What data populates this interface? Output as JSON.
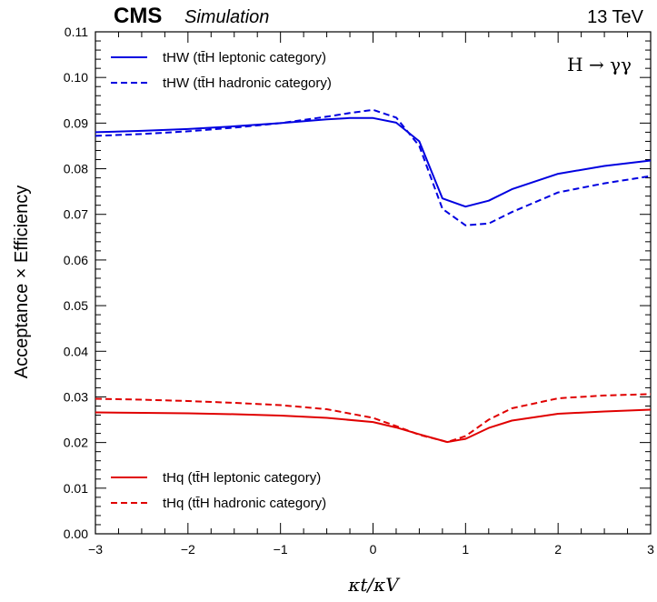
{
  "header": {
    "experiment": "CMS",
    "status": "Simulation",
    "energy": "13 TeV"
  },
  "chart_data": {
    "type": "line",
    "title": "",
    "process_label": "H → γγ",
    "xlabel": "κt/κV",
    "ylabel": "Acceptance × Efficiency",
    "xlim": [
      -3,
      3
    ],
    "ylim": [
      0.0,
      0.11
    ],
    "xticks": [
      "−3",
      "−2",
      "−1",
      "0",
      "1",
      "2",
      "3"
    ],
    "yticks": [
      "0.00",
      "0.01",
      "0.02",
      "0.03",
      "0.04",
      "0.05",
      "0.06",
      "0.07",
      "0.08",
      "0.09",
      "0.10",
      "0.11"
    ],
    "grid": false,
    "legend_top": "top-left",
    "legend_bottom": "bottom-left",
    "series": [
      {
        "name": "tHW (tt̄H leptonic category)",
        "color": "#0000e0",
        "dash": "solid",
        "legend_group": "top",
        "x": [
          -3,
          -2.5,
          -2,
          -1.5,
          -1,
          -0.5,
          -0.25,
          0,
          0.25,
          0.5,
          0.75,
          1,
          1.25,
          1.5,
          2,
          2.5,
          3
        ],
        "y": [
          0.088,
          0.0883,
          0.0887,
          0.0893,
          0.09,
          0.0908,
          0.0911,
          0.0911,
          0.0901,
          0.086,
          0.0735,
          0.0717,
          0.073,
          0.0755,
          0.0789,
          0.0806,
          0.0818
        ]
      },
      {
        "name": "tHW (tt̄H hadronic category)",
        "color": "#0000e0",
        "dash": "dashed",
        "legend_group": "top",
        "x": [
          -3,
          -2.5,
          -2,
          -1.5,
          -1,
          -0.5,
          -0.25,
          0,
          0.25,
          0.5,
          0.75,
          1,
          1.25,
          1.5,
          2,
          2.5,
          3
        ],
        "y": [
          0.0872,
          0.0876,
          0.0882,
          0.089,
          0.09,
          0.0914,
          0.0922,
          0.0929,
          0.0912,
          0.085,
          0.0712,
          0.0676,
          0.068,
          0.0705,
          0.0748,
          0.0768,
          0.0784
        ]
      },
      {
        "name": "tHq (tt̄H leptonic category)",
        "color": "#e00000",
        "dash": "solid",
        "legend_group": "bottom",
        "x": [
          -3,
          -2.5,
          -2,
          -1.5,
          -1,
          -0.5,
          0,
          0.25,
          0.5,
          0.75,
          0.8,
          1,
          1.25,
          1.5,
          2,
          2.5,
          3
        ],
        "y": [
          0.0266,
          0.0265,
          0.0264,
          0.0262,
          0.0259,
          0.0254,
          0.0245,
          0.0233,
          0.0218,
          0.0204,
          0.0201,
          0.0208,
          0.0232,
          0.0248,
          0.0263,
          0.0268,
          0.0272
        ]
      },
      {
        "name": "tHq (tt̄H hadronic category)",
        "color": "#e00000",
        "dash": "dashed",
        "legend_group": "bottom",
        "x": [
          -3,
          -2.5,
          -2,
          -1.5,
          -1,
          -0.5,
          0,
          0.25,
          0.5,
          0.75,
          0.8,
          1,
          1.25,
          1.5,
          2,
          2.5,
          3
        ],
        "y": [
          0.0296,
          0.0294,
          0.0291,
          0.0287,
          0.0282,
          0.0273,
          0.0254,
          0.0236,
          0.0217,
          0.0204,
          0.0201,
          0.0214,
          0.025,
          0.0275,
          0.0297,
          0.0303,
          0.0306
        ]
      }
    ]
  }
}
